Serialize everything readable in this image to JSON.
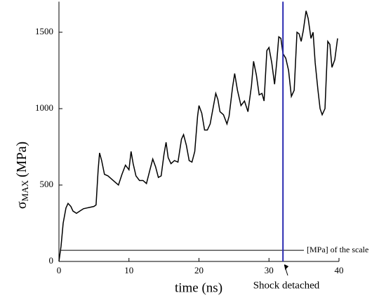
{
  "chart_data": {
    "type": "line",
    "y_label_symbol": "σ",
    "y_label_subscript": "MAX",
    "y_label_unit": "(MPa)",
    "x_label": "time (ns)",
    "xlim": [
      0,
      40
    ],
    "xticks": [
      0,
      10,
      20,
      30,
      40
    ],
    "ylim": [
      0,
      1700
    ],
    "yticks": [
      0,
      500,
      1000,
      1500
    ],
    "series": [
      {
        "color": "#000000",
        "x": [
          0,
          0.3,
          0.6,
          1,
          1.3,
          1.7,
          2,
          2.5,
          3,
          3.5,
          4,
          4.5,
          5,
          5.3,
          5.6,
          5.8,
          6.1,
          6.5,
          7,
          7.5,
          8,
          8.5,
          9,
          9.5,
          10,
          10.3,
          10.6,
          11,
          11.5,
          12,
          12.5,
          13,
          13.4,
          13.8,
          14.2,
          14.6,
          15,
          15.3,
          15.6,
          16,
          16.5,
          17,
          17.5,
          17.8,
          18.2,
          18.6,
          19,
          19.4,
          19.8,
          20,
          20.4,
          20.8,
          21.2,
          21.6,
          22,
          22.4,
          22.7,
          23,
          23.5,
          24,
          24.3,
          24.8,
          25.1,
          25.5,
          26,
          26.5,
          27,
          27.5,
          27.8,
          28.2,
          28.6,
          29,
          29.3,
          29.7,
          30,
          30.4,
          30.8,
          31.1,
          31.4,
          31.7,
          32,
          32.4,
          32.8,
          33.2,
          33.6,
          34,
          34.3,
          34.6,
          34.9,
          35.3,
          35.6,
          36,
          36.3,
          36.6,
          37,
          37.3,
          37.6,
          38,
          38.4,
          38.7,
          39,
          39.4,
          39.8
        ],
        "values": [
          0,
          100,
          250,
          350,
          380,
          360,
          330,
          315,
          330,
          345,
          350,
          355,
          360,
          370,
          600,
          710,
          660,
          570,
          560,
          540,
          520,
          500,
          570,
          630,
          600,
          720,
          640,
          560,
          530,
          530,
          510,
          600,
          670,
          620,
          550,
          560,
          700,
          780,
          680,
          640,
          660,
          650,
          800,
          830,
          760,
          660,
          650,
          720,
          950,
          1020,
          970,
          860,
          860,
          900,
          1000,
          1100,
          1060,
          980,
          960,
          900,
          950,
          1140,
          1230,
          1120,
          1020,
          1050,
          980,
          1150,
          1310,
          1220,
          1090,
          1100,
          1050,
          1380,
          1400,
          1300,
          1160,
          1300,
          1470,
          1460,
          1360,
          1330,
          1250,
          1080,
          1120,
          1500,
          1490,
          1440,
          1510,
          1640,
          1590,
          1460,
          1500,
          1300,
          1120,
          1000,
          960,
          1000,
          1440,
          1420,
          1270,
          1320,
          1460
        ]
      }
    ],
    "annotations": [
      {
        "text": "[MPa] of the scale",
        "y": 73,
        "color": "#000000"
      },
      {
        "text": "Shock detached",
        "x": 32,
        "color": "#2a2ab0"
      }
    ]
  }
}
